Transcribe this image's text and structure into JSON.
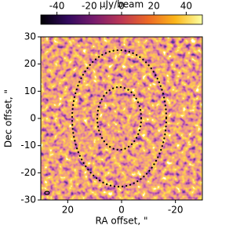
{
  "chart_data": {
    "type": "image",
    "colorbar": {
      "label": "μJy/beam",
      "lim": [
        -50,
        50
      ],
      "ticks": [
        -40,
        -20,
        0,
        20,
        40
      ],
      "colormap": "inferno"
    },
    "xlabel": "RA offset, \"",
    "ylabel": "Dec offset, \"",
    "xlim": [
      30,
      -30
    ],
    "xticks": [
      20,
      0,
      -20
    ],
    "ylim": [
      -30,
      30
    ],
    "yticks": [
      -30,
      -20,
      -10,
      0,
      10,
      20,
      30
    ]
  }
}
